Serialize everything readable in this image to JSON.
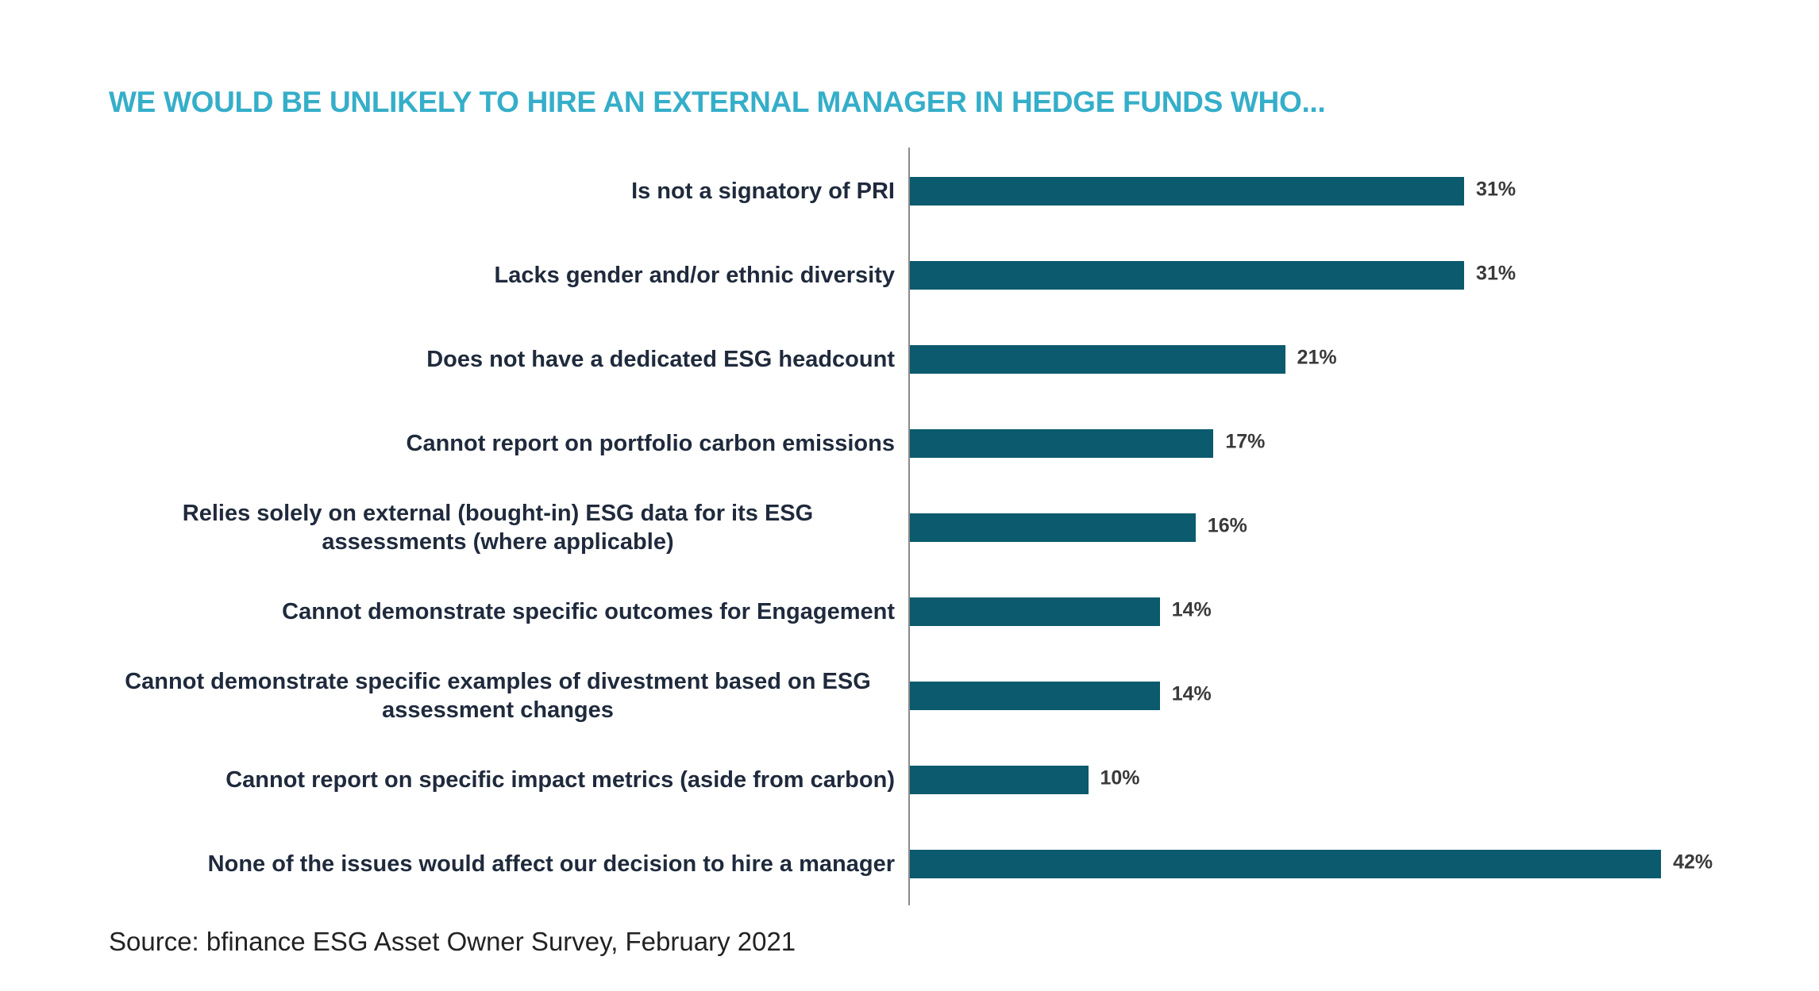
{
  "chart_data": {
    "type": "bar",
    "orientation": "horizontal",
    "title": "WE WOULD BE UNLIKELY TO HIRE AN EXTERNAL MANAGER IN HEDGE FUNDS WHO...",
    "categories": [
      [
        "Is not a signatory of PRI"
      ],
      [
        "Lacks gender and/or ethnic diversity"
      ],
      [
        "Does not have a dedicated ESG headcount"
      ],
      [
        "Cannot report on portfolio carbon emissions"
      ],
      [
        "Relies solely on external (bought-in) ESG data for its ESG",
        "assessments (where applicable)"
      ],
      [
        "Cannot demonstrate specific outcomes for Engagement"
      ],
      [
        "Cannot demonstrate specific examples of divestment based on ESG",
        "assessment changes"
      ],
      [
        "Cannot report on specific impact metrics (aside from carbon)"
      ],
      [
        "None of the issues would affect our decision to hire a manager"
      ]
    ],
    "values": [
      31,
      31,
      21,
      17,
      16,
      14,
      14,
      10,
      42
    ],
    "value_labels": [
      "31%",
      "31%",
      "21%",
      "17%",
      "16%",
      "14%",
      "14%",
      "10%",
      "42%"
    ],
    "xlabel": "",
    "ylabel": "",
    "grid": false,
    "bar_color": "#0b5a6e",
    "title_color": "#35aec9"
  },
  "source": "Source: bfinance ESG Asset Owner Survey, February 2021"
}
